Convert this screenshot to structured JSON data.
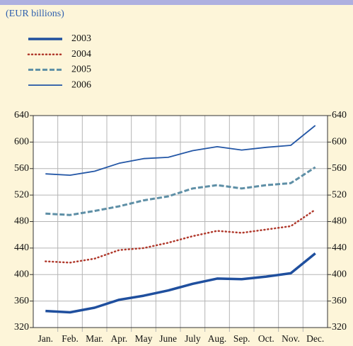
{
  "chart_data": {
    "type": "line",
    "subtitle": "(EUR billions)",
    "categories": [
      "Jan.",
      "Feb.",
      "Mar.",
      "Apr.",
      "May",
      "June",
      "July",
      "Aug.",
      "Sep.",
      "Oct.",
      "Nov.",
      "Dec."
    ],
    "series": [
      {
        "name": "2003",
        "color": "#1f4f9e",
        "line_style": "bold",
        "values": [
          345,
          343,
          350,
          362,
          368,
          376,
          386,
          394,
          393,
          397,
          402,
          432
        ]
      },
      {
        "name": "2004",
        "color": "#b0392c",
        "line_style": "dotted",
        "values": [
          420,
          418,
          424,
          437,
          440,
          448,
          458,
          466,
          463,
          468,
          473,
          498
        ]
      },
      {
        "name": "2005",
        "color": "#5e8fa6",
        "line_style": "dashed",
        "values": [
          492,
          490,
          496,
          503,
          512,
          518,
          530,
          535,
          530,
          535,
          538,
          562
        ]
      },
      {
        "name": "2006",
        "color": "#2457a6",
        "line_style": "solid",
        "values": [
          552,
          550,
          556,
          568,
          575,
          577,
          587,
          593,
          588,
          592,
          595,
          625
        ]
      }
    ],
    "ylim": [
      320,
      640
    ],
    "yticks": [
      320,
      360,
      400,
      440,
      480,
      520,
      560,
      600,
      640
    ],
    "y2lim": [
      320,
      640
    ],
    "y2ticks": [
      320,
      360,
      400,
      440,
      480,
      520,
      560,
      600,
      640
    ],
    "grid": true
  }
}
